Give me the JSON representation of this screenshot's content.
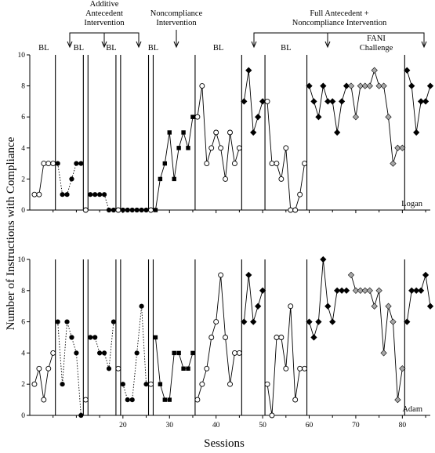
{
  "chart_data": {
    "type": "line",
    "ylabel": "Number of Instructions with Compliance",
    "xlabel": "Sessions",
    "condition_labels": {
      "additive": [
        "Additive",
        "Antecedent",
        "Intervention"
      ],
      "noncompliance": [
        "Noncompliance",
        "Intervention"
      ],
      "full": [
        "Full Antecedent +",
        "Noncompliance Intervention"
      ],
      "challenge": [
        "FANI",
        "Challenge"
      ]
    },
    "phase_labels": [
      {
        "text": "BL",
        "x": 3
      },
      {
        "text": "BL",
        "x": 10.5
      },
      {
        "text": "BL",
        "x": 17.5
      },
      {
        "text": "BL",
        "x": 26.5
      },
      {
        "text": "BL",
        "x": 40.5
      },
      {
        "text": "BL",
        "x": 55
      }
    ],
    "xlim": [
      0,
      86
    ],
    "x_ticks": [
      "20",
      "30",
      "40",
      "50",
      "60",
      "70",
      "80"
    ],
    "x_tick_values": [
      20,
      30,
      40,
      50,
      60,
      70,
      80
    ],
    "x_minor_ticks": [
      5,
      10,
      15,
      25,
      35,
      45,
      55,
      65,
      75,
      85
    ],
    "ylim": [
      0,
      10
    ],
    "y_ticks": [
      "0",
      "2",
      "4",
      "6",
      "8",
      "10"
    ],
    "y_tick_values": [
      0,
      2,
      4,
      6,
      8,
      10
    ],
    "panels": [
      {
        "name": "Logan",
        "phase_lines": [
          5.5,
          11.5,
          12.5,
          18.5,
          19.5,
          25.5,
          26.5,
          35.5,
          45.5,
          50.5,
          59.5,
          80.5
        ],
        "segments": [
          {
            "style": "solid",
            "marker": "open-circle",
            "points": [
              [
                1,
                1
              ],
              [
                2,
                1
              ],
              [
                3,
                3
              ],
              [
                4,
                3
              ],
              [
                5,
                3
              ]
            ]
          },
          {
            "style": "dotted",
            "marker": "filled-circle",
            "points": [
              [
                6,
                3
              ],
              [
                7,
                1
              ],
              [
                8,
                1
              ],
              [
                9,
                2
              ],
              [
                10,
                3
              ],
              [
                11,
                3
              ]
            ]
          },
          {
            "style": "solid",
            "marker": "open-circle",
            "points": [
              [
                12,
                0
              ]
            ]
          },
          {
            "style": "dotted",
            "marker": "filled-circle",
            "points": [
              [
                13,
                1
              ],
              [
                14,
                1
              ],
              [
                15,
                1
              ],
              [
                16,
                1
              ],
              [
                17,
                0
              ],
              [
                18,
                0
              ]
            ]
          },
          {
            "style": "solid",
            "marker": "open-circle",
            "points": [
              [
                19,
                0
              ]
            ]
          },
          {
            "style": "dotted",
            "marker": "filled-circle",
            "points": [
              [
                20,
                0
              ],
              [
                21,
                0
              ],
              [
                22,
                0
              ],
              [
                23,
                0
              ],
              [
                24,
                0
              ],
              [
                25,
                0
              ]
            ]
          },
          {
            "style": "solid",
            "marker": "open-circle",
            "points": [
              [
                26,
                0
              ]
            ]
          },
          {
            "style": "solid",
            "marker": "filled-square",
            "points": [
              [
                27,
                0
              ],
              [
                28,
                2
              ],
              [
                29,
                3
              ],
              [
                30,
                5
              ],
              [
                31,
                2
              ],
              [
                32,
                4
              ],
              [
                33,
                5
              ],
              [
                34,
                4
              ],
              [
                35,
                6
              ]
            ]
          },
          {
            "style": "solid",
            "marker": "open-circle",
            "points": [
              [
                36,
                6
              ],
              [
                37,
                8
              ],
              [
                38,
                3
              ],
              [
                39,
                4
              ],
              [
                40,
                5
              ],
              [
                41,
                4
              ],
              [
                42,
                2
              ],
              [
                43,
                5
              ],
              [
                44,
                3
              ],
              [
                45,
                4
              ]
            ]
          },
          {
            "style": "solid",
            "marker": "filled-diamond",
            "points": [
              [
                46,
                7
              ],
              [
                47,
                9
              ],
              [
                48,
                5
              ],
              [
                49,
                6
              ],
              [
                50,
                7
              ]
            ]
          },
          {
            "style": "solid",
            "marker": "open-circle",
            "points": [
              [
                51,
                7
              ],
              [
                52,
                3
              ],
              [
                53,
                3
              ],
              [
                54,
                2
              ],
              [
                55,
                4
              ],
              [
                56,
                0
              ],
              [
                57,
                0
              ],
              [
                58,
                1
              ],
              [
                59,
                3
              ]
            ]
          },
          {
            "style": "solid",
            "marker": "filled-diamond",
            "points": [
              [
                60,
                8
              ],
              [
                61,
                7
              ],
              [
                62,
                6
              ],
              [
                63,
                8
              ],
              [
                64,
                7
              ],
              [
                65,
                7
              ],
              [
                66,
                5
              ],
              [
                67,
                7
              ],
              [
                68,
                8
              ]
            ]
          },
          {
            "style": "solid",
            "marker": "gray-diamond",
            "points": [
              [
                69,
                8
              ],
              [
                70,
                6
              ],
              [
                71,
                8
              ],
              [
                72,
                8
              ],
              [
                73,
                8
              ],
              [
                74,
                9
              ],
              [
                75,
                8
              ],
              [
                76,
                8
              ],
              [
                77,
                6
              ],
              [
                78,
                3
              ],
              [
                79,
                4
              ],
              [
                80,
                4
              ]
            ]
          },
          {
            "style": "solid",
            "marker": "filled-diamond",
            "points": [
              [
                81,
                9
              ],
              [
                82,
                8
              ],
              [
                83,
                5
              ],
              [
                84,
                7
              ],
              [
                85,
                7
              ],
              [
                86,
                8
              ]
            ]
          }
        ]
      },
      {
        "name": "Adam",
        "phase_lines": [
          5.5,
          11.5,
          12.5,
          18.5,
          19.5,
          25.5,
          26.5,
          35.5,
          45.5,
          50.5,
          59.5,
          80.5
        ],
        "segments": [
          {
            "style": "solid",
            "marker": "open-circle",
            "points": [
              [
                1,
                2
              ],
              [
                2,
                3
              ],
              [
                3,
                1
              ],
              [
                4,
                3
              ],
              [
                5,
                4
              ]
            ]
          },
          {
            "style": "dotted",
            "marker": "filled-circle",
            "points": [
              [
                6,
                6
              ],
              [
                7,
                2
              ],
              [
                8,
                6
              ],
              [
                9,
                5
              ],
              [
                10,
                4
              ],
              [
                11,
                0
              ]
            ]
          },
          {
            "style": "solid",
            "marker": "open-circle",
            "points": [
              [
                12,
                1
              ]
            ]
          },
          {
            "style": "dotted",
            "marker": "filled-circle",
            "points": [
              [
                13,
                5
              ],
              [
                14,
                5
              ],
              [
                15,
                4
              ],
              [
                16,
                4
              ],
              [
                17,
                3
              ],
              [
                18,
                6
              ]
            ]
          },
          {
            "style": "solid",
            "marker": "open-circle",
            "points": [
              [
                19,
                3
              ]
            ]
          },
          {
            "style": "dotted",
            "marker": "filled-circle",
            "points": [
              [
                20,
                2
              ],
              [
                21,
                1
              ],
              [
                22,
                1
              ],
              [
                23,
                4
              ],
              [
                24,
                7
              ],
              [
                25,
                2
              ]
            ]
          },
          {
            "style": "solid",
            "marker": "open-circle",
            "points": [
              [
                26,
                2
              ]
            ]
          },
          {
            "style": "solid",
            "marker": "filled-square",
            "points": [
              [
                27,
                5
              ],
              [
                28,
                2
              ],
              [
                29,
                1
              ],
              [
                30,
                1
              ],
              [
                31,
                4
              ],
              [
                32,
                4
              ],
              [
                33,
                3
              ],
              [
                34,
                3
              ],
              [
                35,
                4
              ]
            ]
          },
          {
            "style": "solid",
            "marker": "open-circle",
            "points": [
              [
                36,
                1
              ],
              [
                37,
                2
              ],
              [
                38,
                3
              ],
              [
                39,
                5
              ],
              [
                40,
                6
              ],
              [
                41,
                9
              ],
              [
                42,
                5
              ],
              [
                43,
                2
              ],
              [
                44,
                4
              ],
              [
                45,
                4
              ]
            ]
          },
          {
            "style": "solid",
            "marker": "filled-diamond",
            "points": [
              [
                46,
                6
              ],
              [
                47,
                9
              ],
              [
                48,
                6
              ],
              [
                49,
                7
              ],
              [
                50,
                8
              ]
            ]
          },
          {
            "style": "solid",
            "marker": "open-circle",
            "points": [
              [
                51,
                2
              ],
              [
                52,
                0
              ],
              [
                53,
                5
              ],
              [
                54,
                5
              ],
              [
                55,
                3
              ],
              [
                56,
                7
              ],
              [
                57,
                1
              ],
              [
                58,
                3
              ],
              [
                59,
                3
              ]
            ]
          },
          {
            "style": "solid",
            "marker": "filled-diamond",
            "points": [
              [
                60,
                6
              ],
              [
                61,
                5
              ],
              [
                62,
                6
              ],
              [
                63,
                10
              ],
              [
                64,
                7
              ],
              [
                65,
                6
              ],
              [
                66,
                8
              ],
              [
                67,
                8
              ],
              [
                68,
                8
              ]
            ]
          },
          {
            "style": "solid",
            "marker": "gray-diamond",
            "points": [
              [
                69,
                9
              ],
              [
                70,
                8
              ],
              [
                71,
                8
              ],
              [
                72,
                8
              ],
              [
                73,
                8
              ],
              [
                74,
                7
              ],
              [
                75,
                8
              ],
              [
                76,
                4
              ],
              [
                77,
                7
              ],
              [
                78,
                6
              ],
              [
                79,
                1
              ],
              [
                80,
                3
              ]
            ]
          },
          {
            "style": "solid",
            "marker": "filled-diamond",
            "points": [
              [
                81,
                6
              ],
              [
                82,
                8
              ],
              [
                83,
                8
              ],
              [
                84,
                8
              ],
              [
                85,
                9
              ],
              [
                86,
                7
              ]
            ]
          }
        ]
      }
    ]
  }
}
